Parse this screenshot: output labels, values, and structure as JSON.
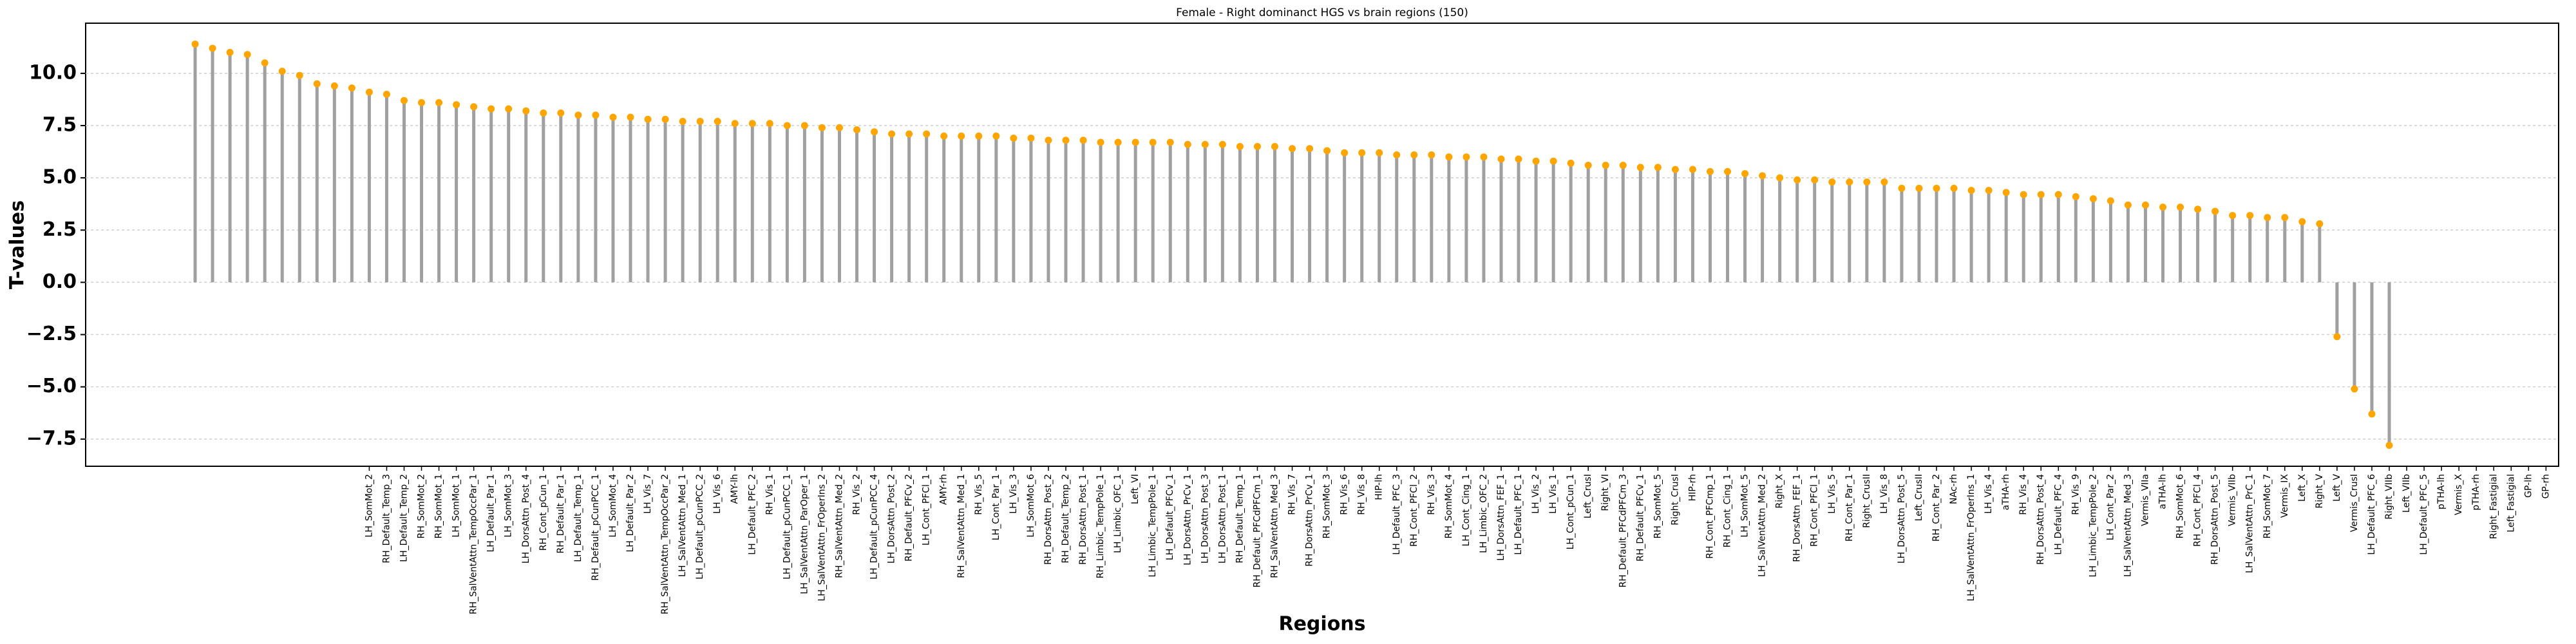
{
  "chart_data": {
    "type": "lollipop",
    "title": "Female - Right dominanct HGS vs brain regions (150)",
    "x_label": "Regions",
    "y_label": "T-values",
    "categories": [
      null,
      null,
      null,
      null,
      null,
      null,
      null,
      null,
      null,
      null,
      "LH_SomMot_2",
      "RH_Default_Temp_3",
      "LH_Default_Temp_2",
      "RH_SomMot_2",
      "RH_SomMot_1",
      "LH_SomMot_1",
      "RH_SalVentAttn_TempOccPar_1",
      "LH_Default_Par_1",
      "LH_SomMot_3",
      "LH_DorsAttn_Post_4",
      "RH_Cont_pCun_1",
      "RH_Default_Par_1",
      "LH_Default_Temp_1",
      "RH_Default_pCunPCC_1",
      "LH_SomMot_4",
      "LH_Default_Par_2",
      "LH_Vis_7",
      "RH_SalVentAttn_TempOccPar_2",
      "LH_SalVentAttn_Med_1",
      "LH_Default_pCunPCC_2",
      "LH_Vis_6",
      "AMY-lh",
      "LH_Default_PFC_2",
      "RH_Vis_1",
      "LH_Default_pCunPCC_1",
      "LH_SalVentAttn_ParOper_1",
      "LH_SalVentAttn_FrOperIns_2",
      "RH_SalVentAttn_Med_2",
      "RH_Vis_2",
      "LH_Default_pCunPCC_4",
      "LH_DorsAttn_Post_2",
      "RH_Default_PFCv_2",
      "LH_Cont_PFCl_1",
      "AMY-rh",
      "RH_SalVentAttn_Med_1",
      "RH_Vis_5",
      "LH_Cont_Par_1",
      "LH_Vis_3",
      "LH_SomMot_6",
      "RH_DorsAttn_Post_2",
      "RH_Default_Temp_2",
      "RH_DorsAttn_Post_1",
      "RH_Limbic_TempPole_1",
      "LH_Limbic_OFC_1",
      "Left_VI",
      "LH_Limbic_TempPole_1",
      "LH_Default_PFCv_1",
      "LH_DorsAttn_PrCv_1",
      "LH_DorsAttn_Post_3",
      "LH_DorsAttn_Post_1",
      "RH_Default_Temp_1",
      "RH_Default_PFCdPFCm_1",
      "RH_SalVentAttn_Med_3",
      "RH_Vis_7",
      "RH_DorsAttn_PrCv_1",
      "RH_SomMot_3",
      "RH_Vis_6",
      "RH_Vis_8",
      "HIP-lh",
      "LH_Default_PFC_3",
      "RH_Cont_PFCl_2",
      "RH_Vis_3",
      "RH_SomMot_4",
      "LH_Cont_Cing_1",
      "LH_Limbic_OFC_2",
      "LH_DorsAttn_FEF_1",
      "LH_Default_PFC_1",
      "LH_Vis_2",
      "LH_Vis_1",
      "LH_Cont_pCun_1",
      "Left_CrusI",
      "Right_VI",
      "RH_Default_PFCdPFCm_3",
      "RH_Default_PFCv_1",
      "RH_SomMot_5",
      "Right_CrusI",
      "HIP-rh",
      "RH_Cont_PFCmp_1",
      "RH_Cont_Cing_1",
      "LH_SomMot_5",
      "LH_SalVentAttn_Med_2",
      "Right_X",
      "RH_DorsAttn_FEF_1",
      "RH_Cont_PFCl_1",
      "LH_Vis_5",
      "RH_Cont_Par_1",
      "Right_CrusII",
      "LH_Vis_8",
      "LH_DorsAttn_Post_5",
      "Left_CrusII",
      "RH_Cont_Par_2",
      "NAc-rh",
      "LH_SalVentAttn_FrOperIns_1",
      "LH_Vis_4",
      "aTHA-rh",
      "RH_Vis_4",
      "RH_DorsAttn_Post_4",
      "LH_Default_PFC_4",
      "RH_Vis_9",
      "LH_Limbic_TempPole_2",
      "LH_Cont_Par_2",
      "LH_SalVentAttn_Med_3",
      "Vermis_VIIa",
      "aTHA-lh",
      "RH_SomMot_6",
      "RH_Cont_PFCl_4",
      "RH_DorsAttn_Post_5",
      "Vermis_VIIb",
      "LH_SalVentAttn_PrC_1",
      "RH_SomMot_7",
      "Vermis_IX",
      "Left_X",
      "Right_V",
      "Left_V",
      "Vermis_CrusI",
      "LH_Default_PFC_6",
      "Right_VIIb",
      "Left_VIIb",
      "LH_Default_PFC_5",
      "pTHA-lh",
      "Vermis_X",
      "pTHA-rh",
      "Right_Fastigial",
      "Left_Fastigial",
      "GP-lh",
      "GP-rh"
    ],
    "values": [
      11.4,
      11.2,
      11.0,
      10.9,
      10.5,
      10.1,
      9.9,
      9.5,
      9.4,
      9.3,
      9.1,
      9.0,
      8.7,
      8.6,
      8.6,
      8.5,
      8.4,
      8.3,
      8.3,
      8.2,
      8.1,
      8.1,
      8.0,
      8.0,
      7.9,
      7.9,
      7.8,
      7.8,
      7.7,
      7.7,
      7.7,
      7.6,
      7.6,
      7.6,
      7.5,
      7.5,
      7.4,
      7.4,
      7.3,
      7.2,
      7.1,
      7.1,
      7.1,
      7.0,
      7.0,
      7.0,
      7.0,
      6.9,
      6.9,
      6.8,
      6.8,
      6.8,
      6.7,
      6.7,
      6.7,
      6.7,
      6.7,
      6.6,
      6.6,
      6.6,
      6.5,
      6.5,
      6.5,
      6.4,
      6.4,
      6.3,
      6.2,
      6.2,
      6.2,
      6.1,
      6.1,
      6.1,
      6.0,
      6.0,
      6.0,
      5.9,
      5.9,
      5.8,
      5.8,
      5.7,
      5.6,
      5.6,
      5.6,
      5.5,
      5.5,
      5.4,
      5.4,
      5.3,
      5.3,
      5.2,
      5.1,
      5.0,
      4.9,
      4.9,
      4.8,
      4.8,
      4.8,
      4.8,
      4.5,
      4.5,
      4.5,
      4.5,
      4.4,
      4.4,
      4.3,
      4.2,
      4.2,
      4.2,
      4.1,
      4.0,
      3.9,
      3.7,
      3.7,
      3.6,
      3.6,
      3.5,
      3.4,
      3.2,
      3.2,
      3.1,
      3.1,
      2.9,
      2.8,
      -2.6,
      -5.1,
      -6.3,
      -7.8,
      null,
      null,
      null,
      null,
      null,
      null,
      null,
      null,
      null
    ],
    "color": "#ffa500",
    "stem_color": "#a0a0a0",
    "ylim": [
      -8.8,
      12.4
    ],
    "yticks": [
      {
        "value": -7.5,
        "label": "−7.5"
      },
      {
        "value": -5,
        "label": "−5.0"
      },
      {
        "value": -2.5,
        "label": "−2.5"
      },
      {
        "value": 0,
        "label": "0.0"
      },
      {
        "value": 2.5,
        "label": "2.5"
      },
      {
        "value": 5,
        "label": "5.0"
      },
      {
        "value": 7.5,
        "label": "7.5"
      },
      {
        "value": 10,
        "label": "10.0"
      }
    ],
    "grid": true
  }
}
